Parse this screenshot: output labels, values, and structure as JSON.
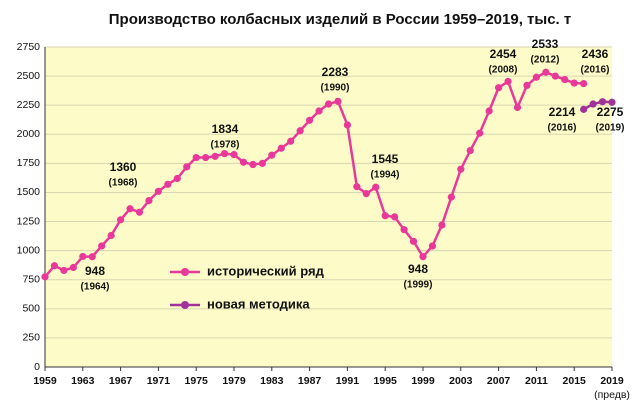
{
  "chart_data": {
    "type": "line",
    "title": "Производство колбасных изделий в России 1959–2019, тыс. т",
    "x_note": "(предв)",
    "x": [
      1959,
      1960,
      1961,
      1962,
      1963,
      1964,
      1965,
      1966,
      1967,
      1968,
      1969,
      1970,
      1971,
      1972,
      1973,
      1974,
      1975,
      1976,
      1977,
      1978,
      1979,
      1980,
      1981,
      1982,
      1983,
      1984,
      1985,
      1986,
      1987,
      1988,
      1989,
      1990,
      1991,
      1992,
      1993,
      1994,
      1995,
      1996,
      1997,
      1998,
      1999,
      2000,
      2001,
      2002,
      2003,
      2004,
      2005,
      2006,
      2007,
      2008,
      2009,
      2010,
      2011,
      2012,
      2013,
      2014,
      2015,
      2016,
      2017,
      2018,
      2019
    ],
    "series": [
      {
        "name": "исторический ряд",
        "color": "#e8399a",
        "values": [
          775,
          870,
          830,
          855,
          950,
          948,
          1040,
          1130,
          1265,
          1360,
          1330,
          1430,
          1510,
          1570,
          1620,
          1720,
          1800,
          1800,
          1810,
          1834,
          1825,
          1760,
          1740,
          1750,
          1820,
          1880,
          1940,
          2030,
          2120,
          2200,
          2260,
          2283,
          2080,
          1550,
          1490,
          1545,
          1300,
          1290,
          1180,
          1080,
          948,
          1040,
          1220,
          1460,
          1700,
          1860,
          2010,
          2200,
          2400,
          2454,
          2230,
          2420,
          2490,
          2533,
          2500,
          2470,
          2440,
          2436,
          null,
          null,
          null
        ]
      },
      {
        "name": "новая методика",
        "color": "#a0329a",
        "values": [
          null,
          null,
          null,
          null,
          null,
          null,
          null,
          null,
          null,
          null,
          null,
          null,
          null,
          null,
          null,
          null,
          null,
          null,
          null,
          null,
          null,
          null,
          null,
          null,
          null,
          null,
          null,
          null,
          null,
          null,
          null,
          null,
          null,
          null,
          null,
          null,
          null,
          null,
          null,
          null,
          null,
          null,
          null,
          null,
          null,
          null,
          null,
          null,
          null,
          null,
          null,
          null,
          null,
          null,
          null,
          null,
          null,
          2214,
          2260,
          2280,
          2275
        ]
      }
    ],
    "annotations": [
      {
        "value": "948",
        "note": "(1964)"
      },
      {
        "value": "1360",
        "note": "(1968)"
      },
      {
        "value": "1834",
        "note": "(1978)"
      },
      {
        "value": "2283",
        "note": "(1990)"
      },
      {
        "value": "1545",
        "note": "(1994)"
      },
      {
        "value": "948",
        "note": "(1999)"
      },
      {
        "value": "2454",
        "note": "(2008)"
      },
      {
        "value": "2533",
        "note": "(2012)"
      },
      {
        "value": "2436",
        "note": "(2016)"
      },
      {
        "value": "2214",
        "note": "(2016)"
      },
      {
        "value": "2275",
        "note": "(2019)"
      }
    ],
    "xlim": [
      1959,
      2019
    ],
    "xticks": [
      1959,
      1963,
      1967,
      1971,
      1975,
      1979,
      1983,
      1987,
      1991,
      1995,
      1999,
      2003,
      2007,
      2011,
      2015,
      2019
    ],
    "ylim": [
      0,
      2750
    ],
    "yticks": [
      0,
      250,
      500,
      750,
      1000,
      1250,
      1500,
      1750,
      2000,
      2250,
      2500,
      2750
    ],
    "grid": true,
    "background": "#fdfbc8"
  }
}
